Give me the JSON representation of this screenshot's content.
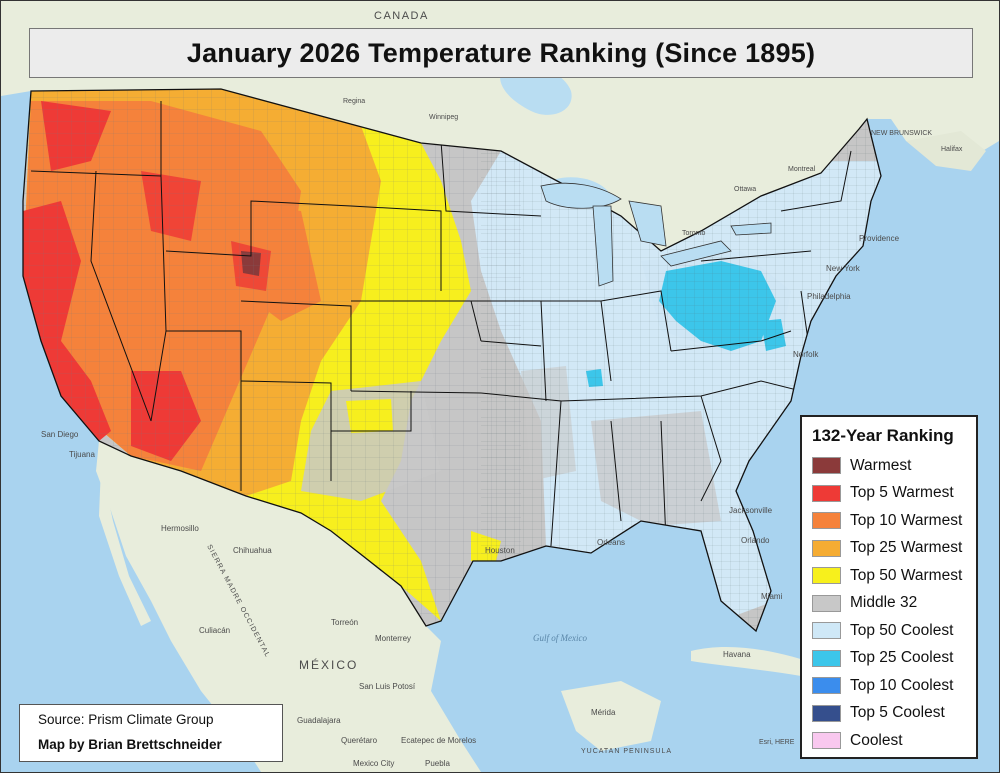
{
  "title": "January 2026 Temperature Ranking (Since 1895)",
  "legend": {
    "title": "132-Year Ranking",
    "items": [
      {
        "label": "Warmest",
        "color": "#8b3a3a"
      },
      {
        "label": "Top 5 Warmest",
        "color": "#ee3a36"
      },
      {
        "label": "Top 10 Warmest",
        "color": "#f5823b"
      },
      {
        "label": "Top 25 Warmest",
        "color": "#f5ac33"
      },
      {
        "label": "Top 50 Warmest",
        "color": "#f7f01c"
      },
      {
        "label": "Middle 32",
        "color": "#c8c8c8"
      },
      {
        "label": "Top 50 Coolest",
        "color": "#cfe8f7"
      },
      {
        "label": "Top 25 Coolest",
        "color": "#3cc6ea"
      },
      {
        "label": "Top 10 Coolest",
        "color": "#3b8ded"
      },
      {
        "label": "Top 5 Coolest",
        "color": "#354f8d"
      },
      {
        "label": "Coolest",
        "color": "#f9c8ef"
      }
    ]
  },
  "credits": {
    "source": "Source: Prism Climate Group",
    "author": "Map by Brian Brettschneider"
  },
  "basemap_labels": {
    "canada": "CANADA",
    "mexico": "MÉXICO",
    "regina": "Regina",
    "winnipeg": "Winnipeg",
    "ottawa": "Ottawa",
    "montreal": "Montreal",
    "toronto": "Toronto",
    "halifax": "Halifax",
    "new_brunswick": "NEW BRUNSWICK",
    "san_diego": "San Diego",
    "tijuana": "Tijuana",
    "hermosillo": "Hermosillo",
    "chihuahua": "Chihuahua",
    "culiacan": "Culiacán",
    "torreon": "Torreón",
    "monterrey": "Monterrey",
    "san_luis_potosi": "San Luis Potosí",
    "guadalajara": "Guadalajara",
    "queretaro": "Querétaro",
    "ecatepec": "Ecatepec de Morelos",
    "mexico_city": "Mexico City",
    "puebla": "Puebla",
    "merida": "Mérida",
    "havana": "Havana",
    "miami": "Miami",
    "jacksonville": "Jacksonville",
    "orlando": "Orlando",
    "new_orleans": "Orleans",
    "houston": "Houston",
    "philadelphia": "Philadelphia",
    "norfolk": "Norfolk",
    "new_york": "New York",
    "providence": "Providence",
    "gulf_of_mexico": "Gulf of Mexico",
    "sierra_madre": "SIERRA MADRE OCCIDENTAL",
    "yucatan": "YUCATAN PENINSULA",
    "esri": "Esri, HERE"
  }
}
